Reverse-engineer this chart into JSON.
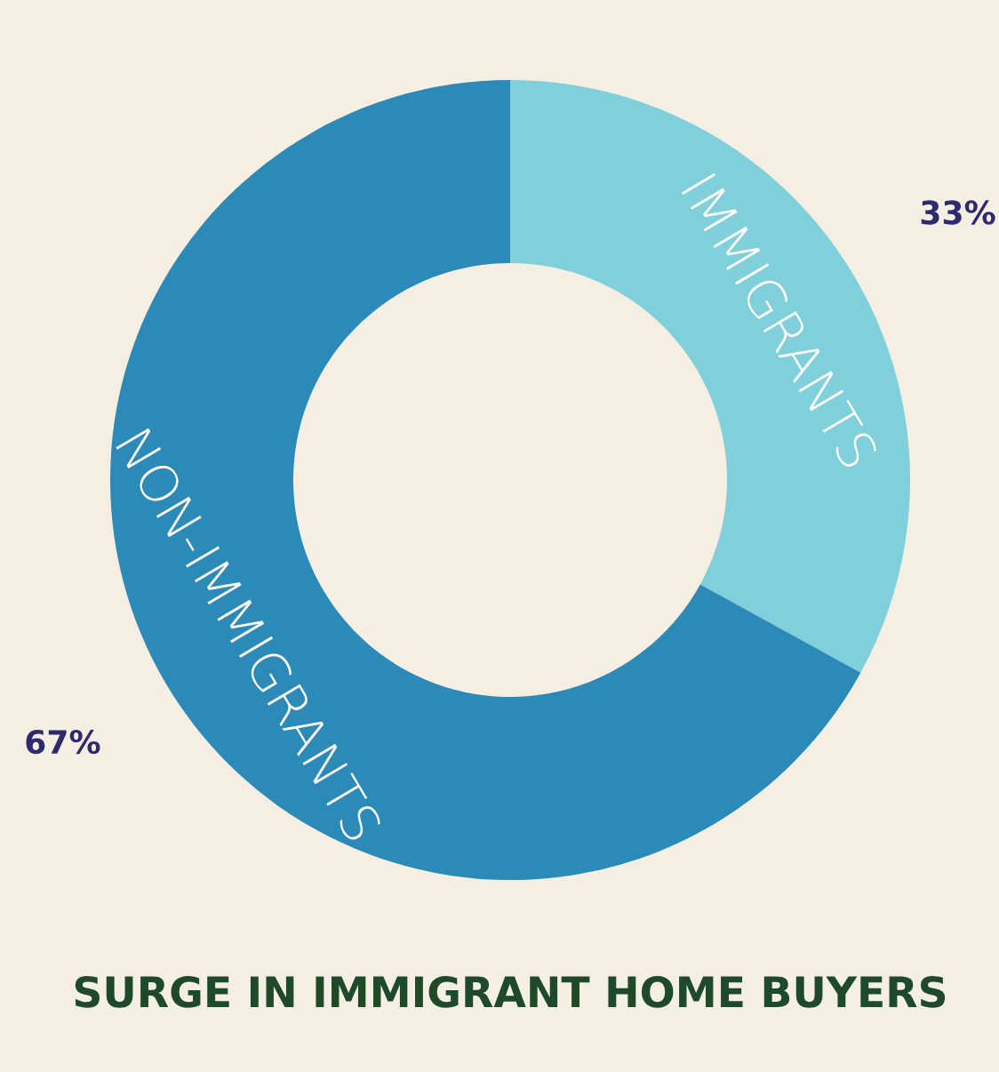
{
  "chart_data": {
    "type": "donut",
    "title": "SURGE IN IMMIGRANT HOME BUYERS",
    "categories": [
      "IMMIGRANTS",
      "NON-IMMIGRANTS"
    ],
    "values": [
      33,
      67
    ],
    "colors": [
      "#7fd0db",
      "#2b8ab8"
    ],
    "value_labels": [
      "33%",
      "67%"
    ],
    "legend": false
  }
}
